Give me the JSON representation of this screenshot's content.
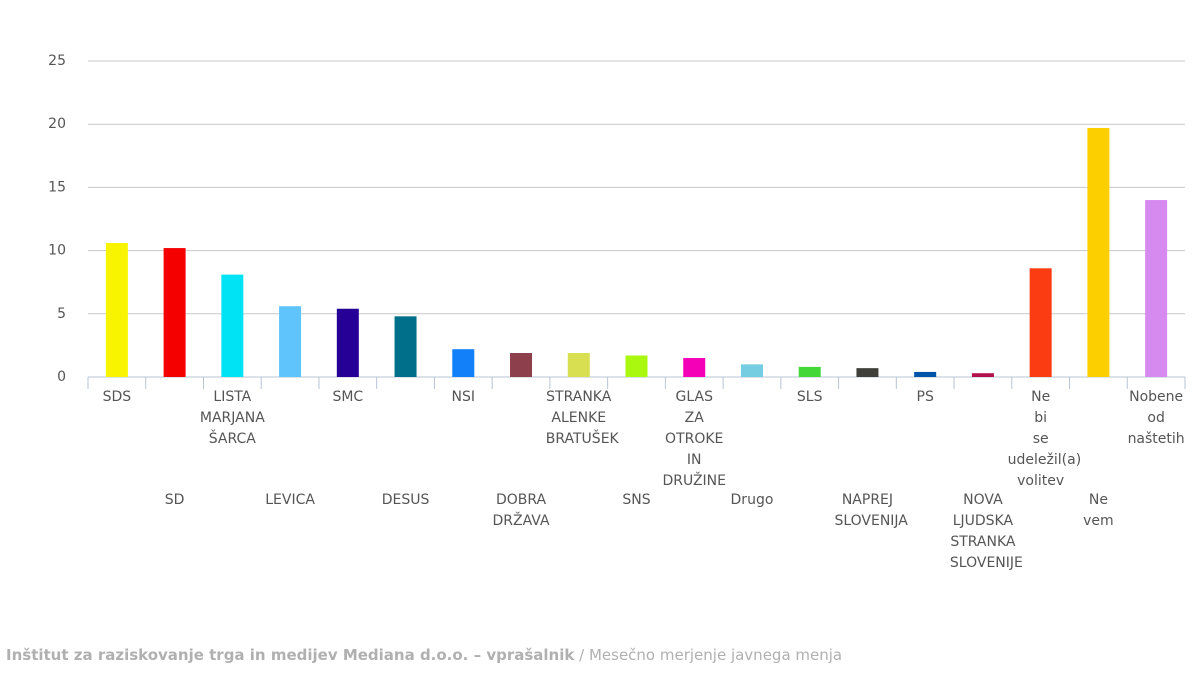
{
  "chart_data": {
    "type": "bar",
    "categories": [
      "SDS",
      "SD",
      "LISTA MARJANA ŠARCA",
      "LEVICA",
      "SMC",
      "DESUS",
      "NSI",
      "DOBRA DRŽAVA",
      "STRANKA ALENKE BRATUŠEK",
      "SNS",
      "GLAS ZA OTROKE IN DRUŽINE",
      "Drugo",
      "SLS",
      "NAPREJ SLOVENIJA",
      "PS",
      "NOVA LJUDSKA STRANKA SLOVENIJE",
      "Ne bi se udeležil(a) volitev",
      "Ne vem",
      "Nobene od naštetih"
    ],
    "values": [
      10.6,
      10.2,
      8.1,
      5.6,
      5.4,
      4.8,
      2.2,
      1.9,
      1.9,
      1.7,
      1.5,
      1.0,
      0.8,
      0.7,
      0.4,
      0.3,
      8.6,
      19.7,
      14.0
    ],
    "colors": [
      "#f8f400",
      "#f50000",
      "#00e3f5",
      "#5fc4fb",
      "#260096",
      "#00708a",
      "#1280f8",
      "#8d3f4c",
      "#d8df50",
      "#aaf80f",
      "#f400b6",
      "#74cde0",
      "#43d838",
      "#3e4039",
      "#0055a9",
      "#b2104a",
      "#fb3b12",
      "#fcd000",
      "#d68af0"
    ],
    "ylim": [
      0,
      25
    ],
    "yticks": [
      0,
      5,
      10,
      15,
      20,
      25
    ],
    "grid": true
  },
  "source": {
    "organization": "Inštitut za raziskovanje trga in medijev Mediana d.o.o. – vprašalnik",
    "survey": "/ Mesečno merjenje javnega menja"
  }
}
